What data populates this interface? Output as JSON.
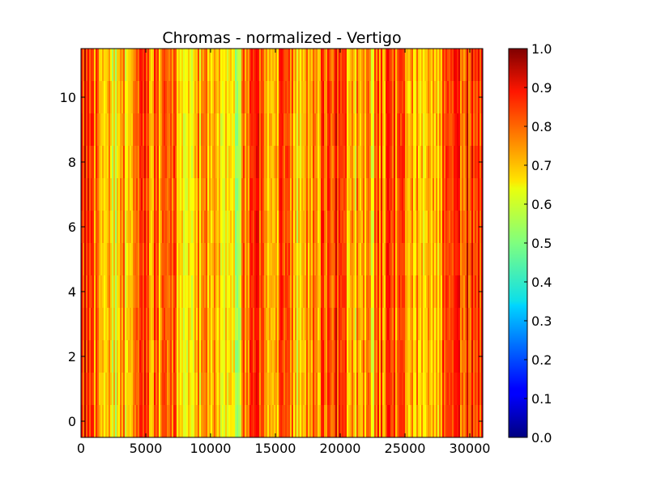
{
  "chart_data": {
    "type": "heatmap",
    "title": "Chromas - normalized - Vertigo",
    "xlabel": "",
    "ylabel": "",
    "x_range": [
      0,
      31000
    ],
    "y_range": [
      -0.5,
      11.5
    ],
    "rows": 12,
    "x_ticks": [
      {
        "value": 0,
        "label": "0"
      },
      {
        "value": 5000,
        "label": "5000"
      },
      {
        "value": 10000,
        "label": "10000"
      },
      {
        "value": 15000,
        "label": "15000"
      },
      {
        "value": 20000,
        "label": "20000"
      },
      {
        "value": 25000,
        "label": "25000"
      },
      {
        "value": 30000,
        "label": "30000"
      }
    ],
    "y_ticks": [
      {
        "value": 0,
        "label": "0"
      },
      {
        "value": 2,
        "label": "2"
      },
      {
        "value": 4,
        "label": "4"
      },
      {
        "value": 6,
        "label": "6"
      },
      {
        "value": 8,
        "label": "8"
      },
      {
        "value": 10,
        "label": "10"
      }
    ],
    "colormap": "jet",
    "colorbar": {
      "range": [
        0.0,
        1.0
      ],
      "ticks": [
        {
          "value": 0.0,
          "label": "0.0"
        },
        {
          "value": 0.1,
          "label": "0.1"
        },
        {
          "value": 0.2,
          "label": "0.2"
        },
        {
          "value": 0.3,
          "label": "0.3"
        },
        {
          "value": 0.4,
          "label": "0.4"
        },
        {
          "value": 0.5,
          "label": "0.5"
        },
        {
          "value": 0.6,
          "label": "0.6"
        },
        {
          "value": 0.7,
          "label": "0.7"
        },
        {
          "value": 0.8,
          "label": "0.8"
        },
        {
          "value": 0.9,
          "label": "0.9"
        },
        {
          "value": 1.0,
          "label": "1.0"
        }
      ]
    },
    "column_profile": {
      "x": [
        0,
        500,
        1000,
        1500,
        2000,
        2500,
        3000,
        3500,
        4000,
        4500,
        5000,
        5500,
        6000,
        6500,
        7000,
        7500,
        8000,
        8500,
        9000,
        9500,
        10000,
        10500,
        11000,
        11500,
        12000,
        12500,
        13000,
        13500,
        14000,
        14500,
        15000,
        15500,
        16000,
        16500,
        17000,
        17500,
        18000,
        18500,
        19000,
        19500,
        20000,
        20500,
        21000,
        21500,
        22000,
        22500,
        23000,
        23500,
        24000,
        24500,
        25000,
        25500,
        26000,
        26500,
        27000,
        27500,
        28000,
        28500,
        29000,
        29500,
        30000,
        30500,
        31000
      ],
      "mean_value": [
        0.82,
        0.85,
        0.78,
        0.72,
        0.66,
        0.64,
        0.66,
        0.7,
        0.74,
        0.8,
        0.77,
        0.74,
        0.72,
        0.76,
        0.78,
        0.7,
        0.68,
        0.66,
        0.7,
        0.72,
        0.74,
        0.7,
        0.66,
        0.64,
        0.62,
        0.7,
        0.8,
        0.82,
        0.78,
        0.74,
        0.72,
        0.76,
        0.74,
        0.68,
        0.7,
        0.72,
        0.74,
        0.76,
        0.8,
        0.84,
        0.82,
        0.72,
        0.68,
        0.72,
        0.74,
        0.7,
        0.76,
        0.78,
        0.8,
        0.76,
        0.74,
        0.7,
        0.72,
        0.7,
        0.66,
        0.72,
        0.76,
        0.8,
        0.82,
        0.84,
        0.82,
        0.8,
        0.78
      ]
    }
  }
}
